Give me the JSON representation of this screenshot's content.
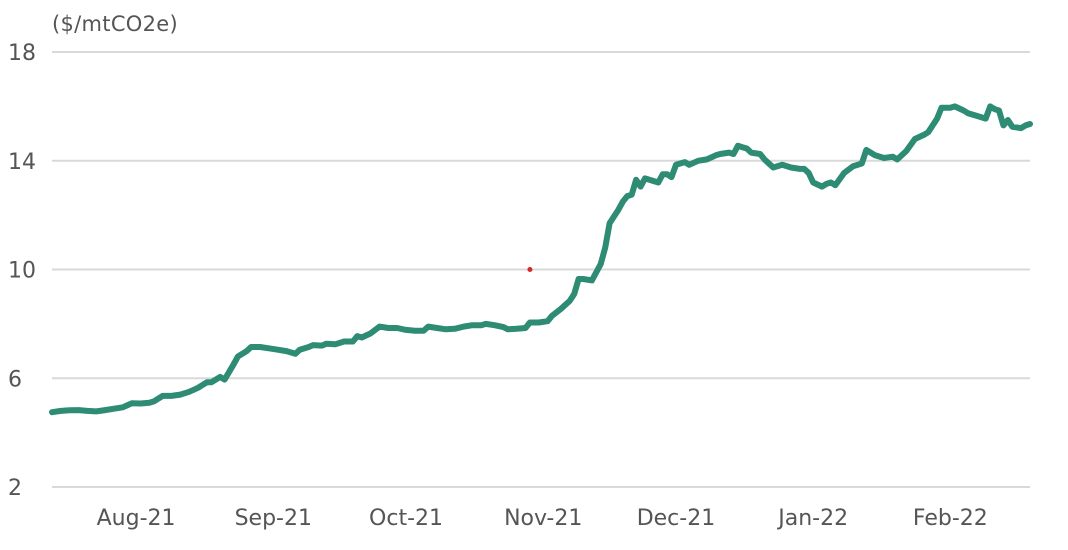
{
  "chart_data": {
    "type": "line",
    "ylabel": "($/mtCO2e)",
    "ylim": [
      2,
      18
    ],
    "yticks": [
      2,
      6,
      10,
      14,
      18
    ],
    "xlim": [
      "2021-07-13",
      "2022-02-19"
    ],
    "xticks": [
      {
        "label": "Aug-21",
        "date": "2021-08-01"
      },
      {
        "label": "Sep-21",
        "date": "2021-09-01"
      },
      {
        "label": "Oct-21",
        "date": "2021-10-01"
      },
      {
        "label": "Nov-21",
        "date": "2021-11-01"
      },
      {
        "label": "Dec-21",
        "date": "2021-12-01"
      },
      {
        "label": "Jan-22",
        "date": "2022-01-01"
      },
      {
        "label": "Feb-22",
        "date": "2022-02-01"
      }
    ],
    "grid": true,
    "legend": "none",
    "series": [
      {
        "color": "#2e8b74",
        "points": [
          [
            "2021-07-13",
            4.75
          ],
          [
            "2021-07-15",
            4.8
          ],
          [
            "2021-07-17",
            4.82
          ],
          [
            "2021-07-19",
            4.83
          ],
          [
            "2021-07-21",
            4.8
          ],
          [
            "2021-07-23",
            4.78
          ],
          [
            "2021-07-25",
            4.83
          ],
          [
            "2021-07-27",
            4.88
          ],
          [
            "2021-07-29",
            4.93
          ],
          [
            "2021-07-31",
            5.08
          ],
          [
            "2021-08-02",
            5.07
          ],
          [
            "2021-08-04",
            5.1
          ],
          [
            "2021-08-05",
            5.15
          ],
          [
            "2021-08-07",
            5.35
          ],
          [
            "2021-08-09",
            5.35
          ],
          [
            "2021-08-11",
            5.4
          ],
          [
            "2021-08-13",
            5.5
          ],
          [
            "2021-08-15",
            5.65
          ],
          [
            "2021-08-16",
            5.75
          ],
          [
            "2021-08-17",
            5.85
          ],
          [
            "2021-08-18",
            5.85
          ],
          [
            "2021-08-20",
            6.05
          ],
          [
            "2021-08-21",
            5.95
          ],
          [
            "2021-08-23",
            6.5
          ],
          [
            "2021-08-24",
            6.8
          ],
          [
            "2021-08-26",
            7.0
          ],
          [
            "2021-08-27",
            7.15
          ],
          [
            "2021-08-29",
            7.15
          ],
          [
            "2021-08-31",
            7.1
          ],
          [
            "2021-09-02",
            7.05
          ],
          [
            "2021-09-04",
            7.0
          ],
          [
            "2021-09-06",
            6.9
          ],
          [
            "2021-09-07",
            7.05
          ],
          [
            "2021-09-09",
            7.15
          ],
          [
            "2021-09-10",
            7.22
          ],
          [
            "2021-09-12",
            7.2
          ],
          [
            "2021-09-13",
            7.27
          ],
          [
            "2021-09-15",
            7.25
          ],
          [
            "2021-09-17",
            7.35
          ],
          [
            "2021-09-19",
            7.35
          ],
          [
            "2021-09-20",
            7.55
          ],
          [
            "2021-09-21",
            7.5
          ],
          [
            "2021-09-23",
            7.65
          ],
          [
            "2021-09-25",
            7.9
          ],
          [
            "2021-09-27",
            7.85
          ],
          [
            "2021-09-29",
            7.85
          ],
          [
            "2021-10-01",
            7.78
          ],
          [
            "2021-10-03",
            7.75
          ],
          [
            "2021-10-05",
            7.75
          ],
          [
            "2021-10-06",
            7.9
          ],
          [
            "2021-10-08",
            7.85
          ],
          [
            "2021-10-10",
            7.8
          ],
          [
            "2021-10-12",
            7.82
          ],
          [
            "2021-10-14",
            7.9
          ],
          [
            "2021-10-16",
            7.95
          ],
          [
            "2021-10-18",
            7.95
          ],
          [
            "2021-10-19",
            8.0
          ],
          [
            "2021-10-21",
            7.95
          ],
          [
            "2021-10-23",
            7.88
          ],
          [
            "2021-10-24",
            7.8
          ],
          [
            "2021-10-26",
            7.82
          ],
          [
            "2021-10-28",
            7.85
          ],
          [
            "2021-10-29",
            8.05
          ],
          [
            "2021-10-31",
            8.05
          ],
          [
            "2021-11-02",
            8.1
          ],
          [
            "2021-11-03",
            8.3
          ],
          [
            "2021-11-05",
            8.55
          ],
          [
            "2021-11-07",
            8.85
          ],
          [
            "2021-11-08",
            9.1
          ],
          [
            "2021-11-09",
            9.65
          ],
          [
            "2021-11-10",
            9.65
          ],
          [
            "2021-11-12",
            9.6
          ],
          [
            "2021-11-14",
            10.2
          ],
          [
            "2021-11-15",
            10.8
          ],
          [
            "2021-11-16",
            11.7
          ],
          [
            "2021-11-18",
            12.2
          ],
          [
            "2021-11-19",
            12.5
          ],
          [
            "2021-11-20",
            12.7
          ],
          [
            "2021-11-21",
            12.75
          ],
          [
            "2021-11-22",
            13.3
          ],
          [
            "2021-11-23",
            13.05
          ],
          [
            "2021-11-24",
            13.35
          ],
          [
            "2021-11-26",
            13.25
          ],
          [
            "2021-11-27",
            13.2
          ],
          [
            "2021-11-28",
            13.5
          ],
          [
            "2021-11-29",
            13.5
          ],
          [
            "2021-11-30",
            13.4
          ],
          [
            "2021-12-01",
            13.85
          ],
          [
            "2021-12-03",
            13.95
          ],
          [
            "2021-12-04",
            13.85
          ],
          [
            "2021-12-06",
            14.0
          ],
          [
            "2021-12-08",
            14.05
          ],
          [
            "2021-12-10",
            14.2
          ],
          [
            "2021-12-11",
            14.25
          ],
          [
            "2021-12-13",
            14.3
          ],
          [
            "2021-12-14",
            14.25
          ],
          [
            "2021-12-15",
            14.55
          ],
          [
            "2021-12-16",
            14.5
          ],
          [
            "2021-12-17",
            14.45
          ],
          [
            "2021-12-18",
            14.3
          ],
          [
            "2021-12-20",
            14.25
          ],
          [
            "2021-12-21",
            14.05
          ],
          [
            "2021-12-22",
            13.9
          ],
          [
            "2021-12-23",
            13.75
          ],
          [
            "2021-12-25",
            13.85
          ],
          [
            "2021-12-27",
            13.75
          ],
          [
            "2021-12-29",
            13.7
          ],
          [
            "2021-12-30",
            13.7
          ],
          [
            "2021-12-31",
            13.55
          ],
          [
            "2022-01-01",
            13.2
          ],
          [
            "2022-01-03",
            13.05
          ],
          [
            "2022-01-04",
            13.15
          ],
          [
            "2022-01-05",
            13.2
          ],
          [
            "2022-01-06",
            13.1
          ],
          [
            "2022-01-08",
            13.55
          ],
          [
            "2022-01-10",
            13.8
          ],
          [
            "2022-01-12",
            13.9
          ],
          [
            "2022-01-13",
            14.4
          ],
          [
            "2022-01-15",
            14.2
          ],
          [
            "2022-01-17",
            14.1
          ],
          [
            "2022-01-19",
            14.15
          ],
          [
            "2022-01-20",
            14.05
          ],
          [
            "2022-01-22",
            14.35
          ],
          [
            "2022-01-24",
            14.8
          ],
          [
            "2022-01-26",
            14.95
          ],
          [
            "2022-01-27",
            15.05
          ],
          [
            "2022-01-29",
            15.55
          ],
          [
            "2022-01-30",
            15.95
          ],
          [
            "2022-02-01",
            15.95
          ],
          [
            "2022-02-02",
            16.0
          ],
          [
            "2022-02-04",
            15.85
          ],
          [
            "2022-02-05",
            15.75
          ],
          [
            "2022-02-07",
            15.65
          ],
          [
            "2022-02-09",
            15.55
          ],
          [
            "2022-02-10",
            16.0
          ],
          [
            "2022-02-11",
            15.9
          ],
          [
            "2022-02-12",
            15.85
          ],
          [
            "2022-02-13",
            15.3
          ],
          [
            "2022-02-14",
            15.5
          ],
          [
            "2022-02-15",
            15.25
          ],
          [
            "2022-02-17",
            15.2
          ],
          [
            "2022-02-18",
            15.3
          ],
          [
            "2022-02-19",
            15.35
          ]
        ]
      }
    ],
    "annotations": [
      {
        "type": "point",
        "date": "2021-10-29",
        "value": 10.0,
        "color": "#d42a2a"
      }
    ]
  }
}
